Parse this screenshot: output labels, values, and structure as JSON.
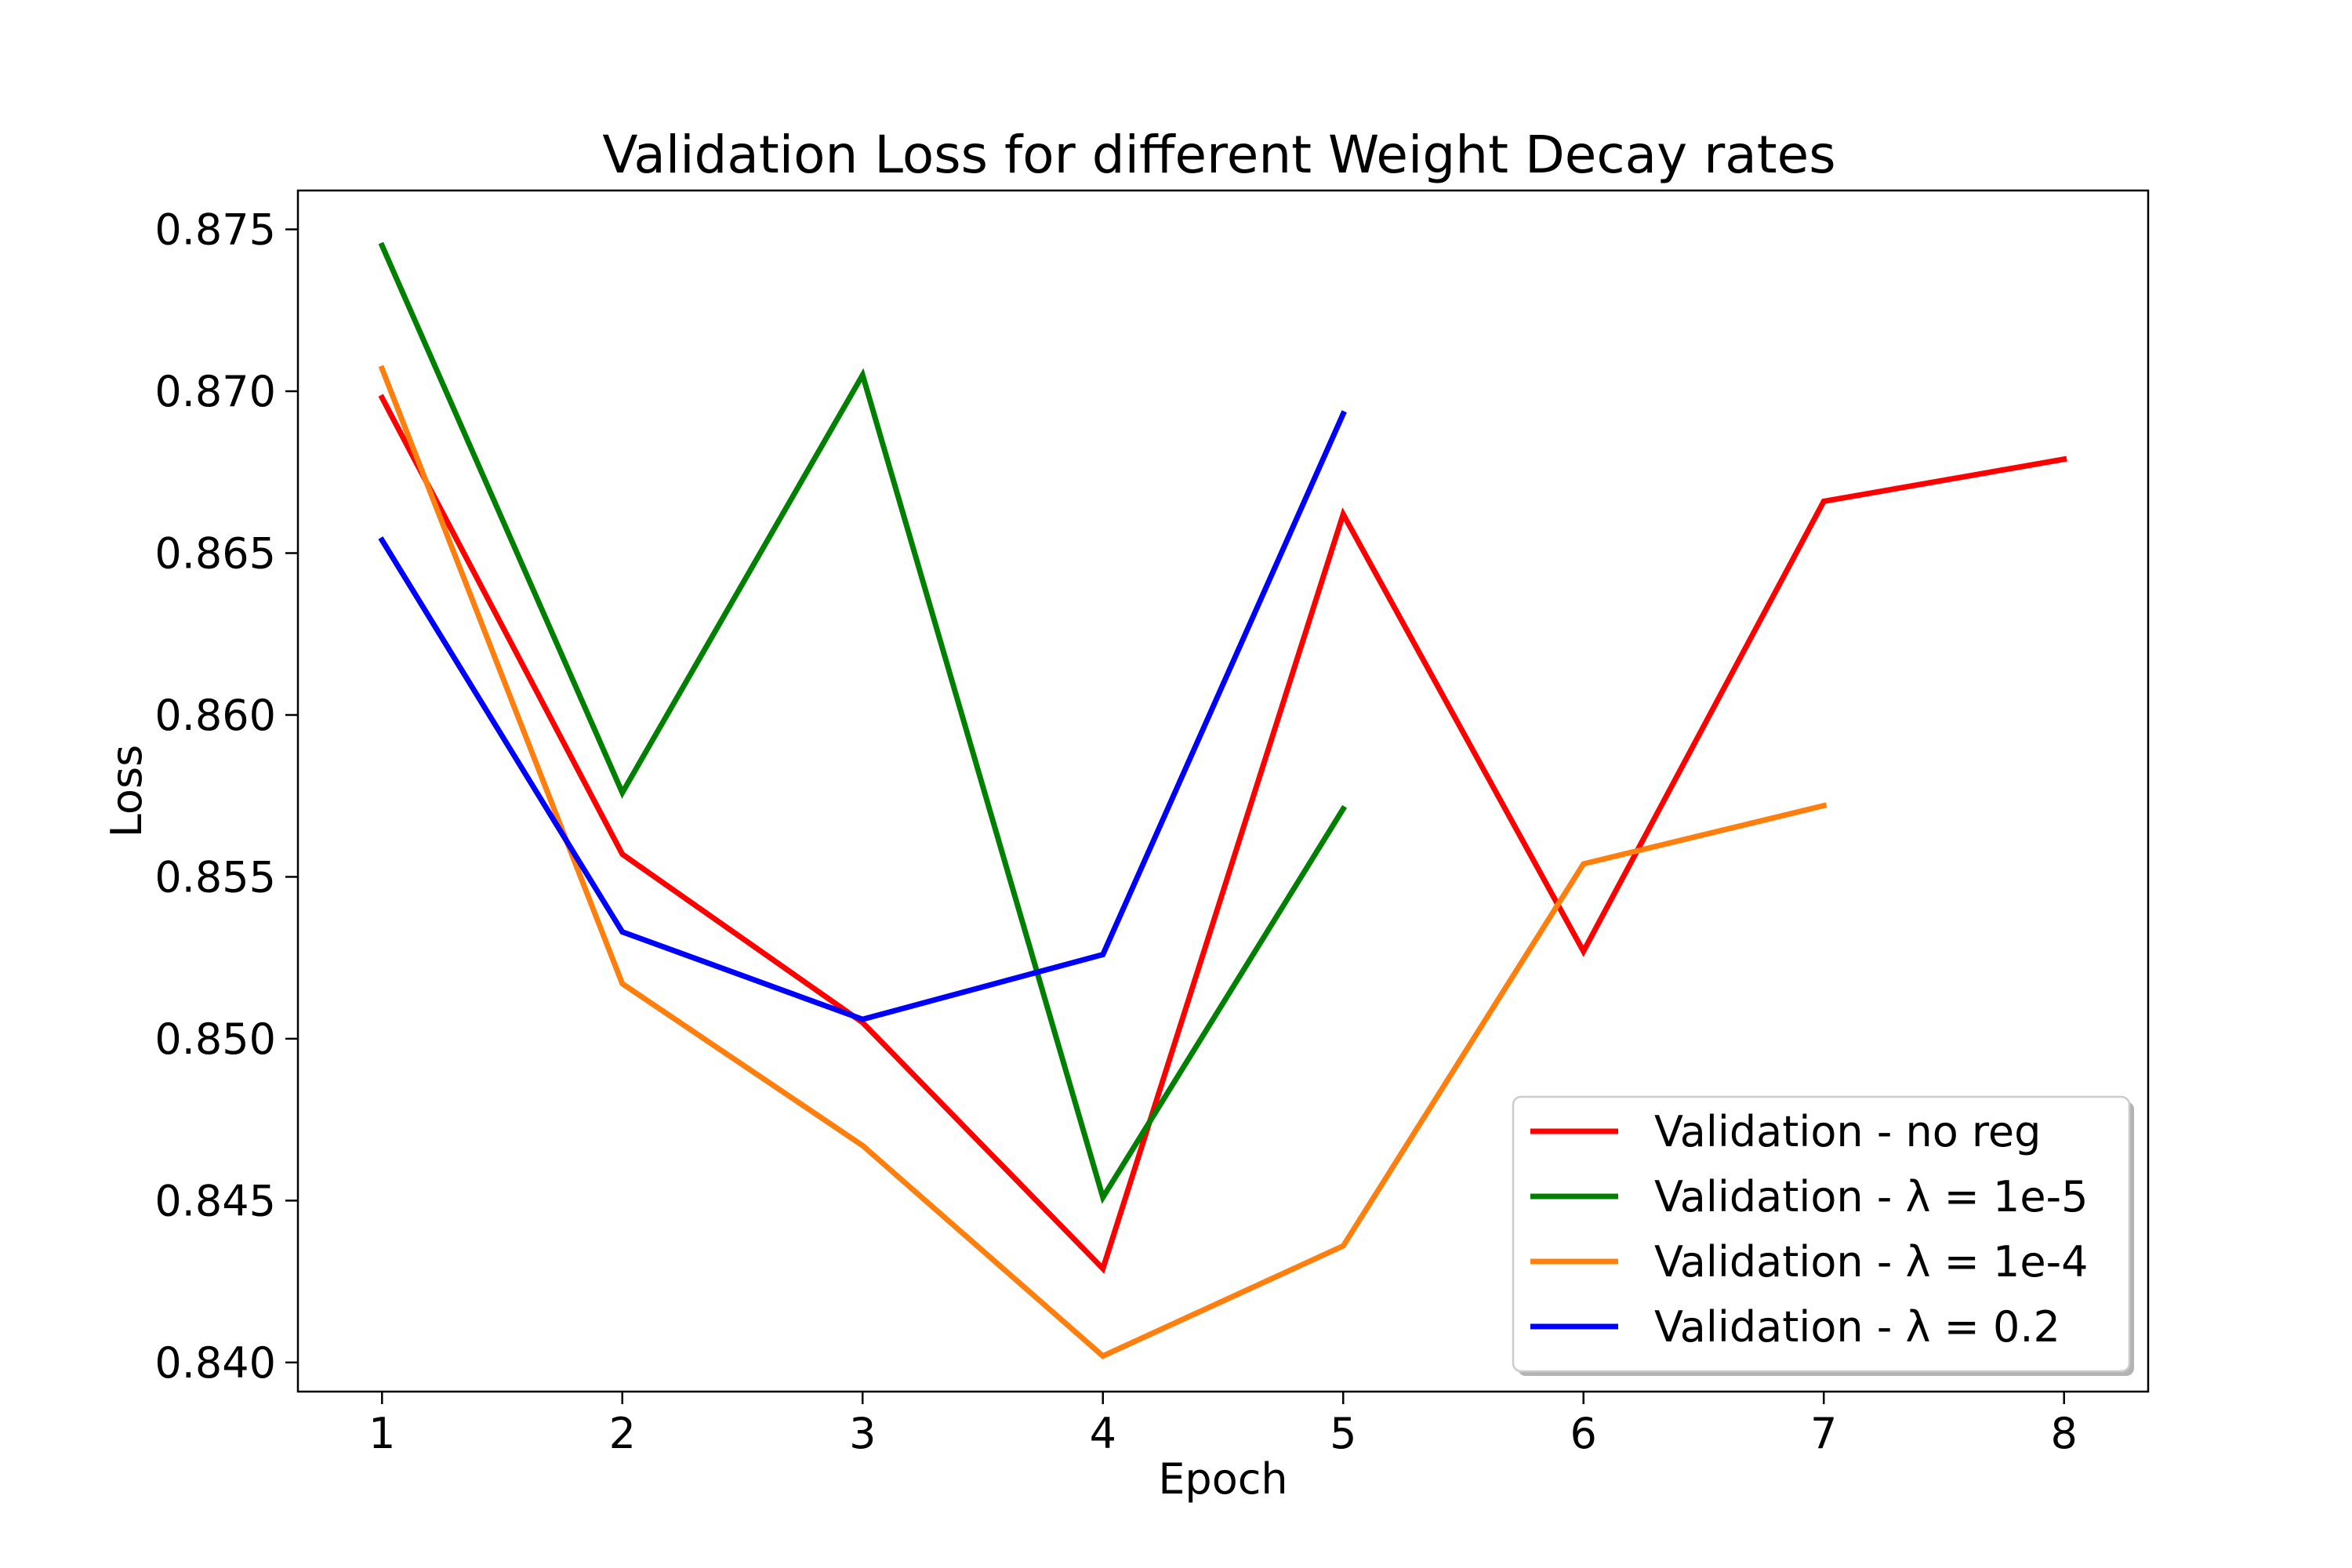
{
  "chart_data": {
    "type": "line",
    "title": "Validation Loss for different Weight Decay rates",
    "xlabel": "Epoch",
    "ylabel": "Loss",
    "xlim": [
      0.65,
      8.35
    ],
    "ylim": [
      0.8391,
      0.8762
    ],
    "xticks": [
      1,
      2,
      3,
      4,
      5,
      6,
      7,
      8
    ],
    "xtick_labels": [
      "1",
      "2",
      "3",
      "4",
      "5",
      "6",
      "7",
      "8"
    ],
    "yticks": [
      0.84,
      0.845,
      0.85,
      0.855,
      0.86,
      0.865,
      0.87,
      0.875
    ],
    "ytick_labels": [
      "0.840",
      "0.845",
      "0.850",
      "0.855",
      "0.860",
      "0.865",
      "0.870",
      "0.875"
    ],
    "grid": false,
    "legend_position": "lower-right",
    "series": [
      {
        "name": "Validation - no reg",
        "color": "#ff0000",
        "x": [
          1,
          2,
          3,
          4,
          5,
          6,
          7,
          8
        ],
        "values": [
          0.8698,
          0.8557,
          0.8505,
          0.8429,
          0.8662,
          0.8527,
          0.8666,
          0.8679
        ]
      },
      {
        "name": "Validation - λ = 1e-5",
        "color": "#008000",
        "x": [
          1,
          2,
          3,
          4,
          5
        ],
        "values": [
          0.8745,
          0.8576,
          0.8705,
          0.8451,
          0.8571
        ]
      },
      {
        "name": "Validation - λ = 1e-4",
        "color": "#ff7f0e",
        "x": [
          1,
          2,
          3,
          4,
          5,
          6,
          7
        ],
        "values": [
          0.8707,
          0.8517,
          0.8467,
          0.8402,
          0.8436,
          0.8554,
          0.8572
        ]
      },
      {
        "name": "Validation - λ = 0.2",
        "color": "#0000ff",
        "x": [
          1,
          2,
          3,
          4,
          5
        ],
        "values": [
          0.8654,
          0.8533,
          0.8506,
          0.8526,
          0.8693
        ]
      }
    ]
  }
}
